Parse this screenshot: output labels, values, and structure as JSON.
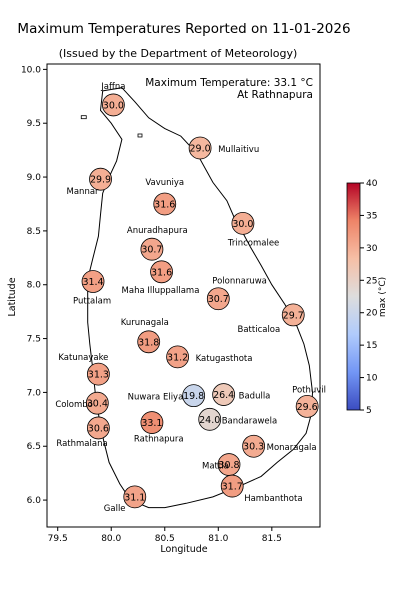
{
  "title": "Maximum Temperatures Reported on 11-01-2026",
  "subtitle": "(Issued by the Department of Meteorology)",
  "annotation": {
    "line1": "Maximum Temperature: 33.1 °C",
    "line2": "At Rathnapura"
  },
  "chart_data": {
    "type": "scatter",
    "xlabel": "Longitude",
    "ylabel": "Latitude",
    "xlim": [
      79.4,
      81.95
    ],
    "ylim": [
      5.75,
      10.05
    ],
    "xticks": [
      "79.5",
      "80.0",
      "80.5",
      "81.0",
      "81.5"
    ],
    "yticks": [
      "6.0",
      "6.5",
      "7.0",
      "7.5",
      "8.0",
      "8.5",
      "9.0",
      "9.5",
      "10.0"
    ],
    "grid": false,
    "colorbar": {
      "label": "max (°C)",
      "range": [
        5,
        40
      ],
      "ticks": [
        "5",
        "10",
        "15",
        "20",
        "25",
        "30",
        "35",
        "40"
      ],
      "colormap": "coolwarm",
      "colors": [
        "#3b4cc0",
        "#7396f5",
        "#b0cbfc",
        "#dddddd",
        "#f6bfa6",
        "#ee8468",
        "#b40426"
      ]
    },
    "stations": [
      {
        "name": "Jaffna",
        "lon": 80.02,
        "lat": 9.67,
        "value": 30.0
      },
      {
        "name": "Mullaitivu",
        "lon": 80.83,
        "lat": 9.27,
        "value": 29.0
      },
      {
        "name": "Mannar",
        "lon": 79.9,
        "lat": 8.98,
        "value": 29.9
      },
      {
        "name": "Vavuniya",
        "lon": 80.5,
        "lat": 8.75,
        "value": 31.6
      },
      {
        "name": "Trincomalee",
        "lon": 81.23,
        "lat": 8.57,
        "value": 30.0
      },
      {
        "name": "Anuradhapura",
        "lon": 80.38,
        "lat": 8.33,
        "value": 30.7
      },
      {
        "name": "Maha Illuppallama",
        "lon": 80.47,
        "lat": 8.12,
        "value": 31.6
      },
      {
        "name": "Puttalam",
        "lon": 79.83,
        "lat": 8.03,
        "value": 31.4
      },
      {
        "name": "Polonnaruwa",
        "lon": 81.0,
        "lat": 7.87,
        "value": 30.7
      },
      {
        "name": "Batticaloa",
        "lon": 81.7,
        "lat": 7.72,
        "value": 29.7
      },
      {
        "name": "Kurunagala",
        "lon": 80.35,
        "lat": 7.47,
        "value": 31.8
      },
      {
        "name": "Katugasthota",
        "lon": 80.62,
        "lat": 7.33,
        "value": 31.2
      },
      {
        "name": "Katunayake",
        "lon": 79.88,
        "lat": 7.17,
        "value": 31.3
      },
      {
        "name": "Colombo",
        "lon": 79.87,
        "lat": 6.9,
        "value": 30.4
      },
      {
        "name": "Nuwara Eliya",
        "lon": 80.77,
        "lat": 6.97,
        "value": 19.8
      },
      {
        "name": "Badulla",
        "lon": 81.05,
        "lat": 6.98,
        "value": 26.4
      },
      {
        "name": "Pothuvil",
        "lon": 81.83,
        "lat": 6.87,
        "value": 29.6
      },
      {
        "name": "Bandarawela",
        "lon": 80.92,
        "lat": 6.75,
        "value": 24.0
      },
      {
        "name": "Rathmalana",
        "lon": 79.88,
        "lat": 6.67,
        "value": 30.6
      },
      {
        "name": "Rathnapura",
        "lon": 80.38,
        "lat": 6.72,
        "value": 33.1
      },
      {
        "name": "Monaragala",
        "lon": 81.33,
        "lat": 6.5,
        "value": 30.3
      },
      {
        "name": "Mattla",
        "lon": 81.1,
        "lat": 6.33,
        "value": 30.8
      },
      {
        "name": "Hambanthota",
        "lon": 81.13,
        "lat": 6.13,
        "value": 31.7
      },
      {
        "name": "Galle",
        "lon": 80.22,
        "lat": 6.03,
        "value": 31.1
      }
    ]
  }
}
